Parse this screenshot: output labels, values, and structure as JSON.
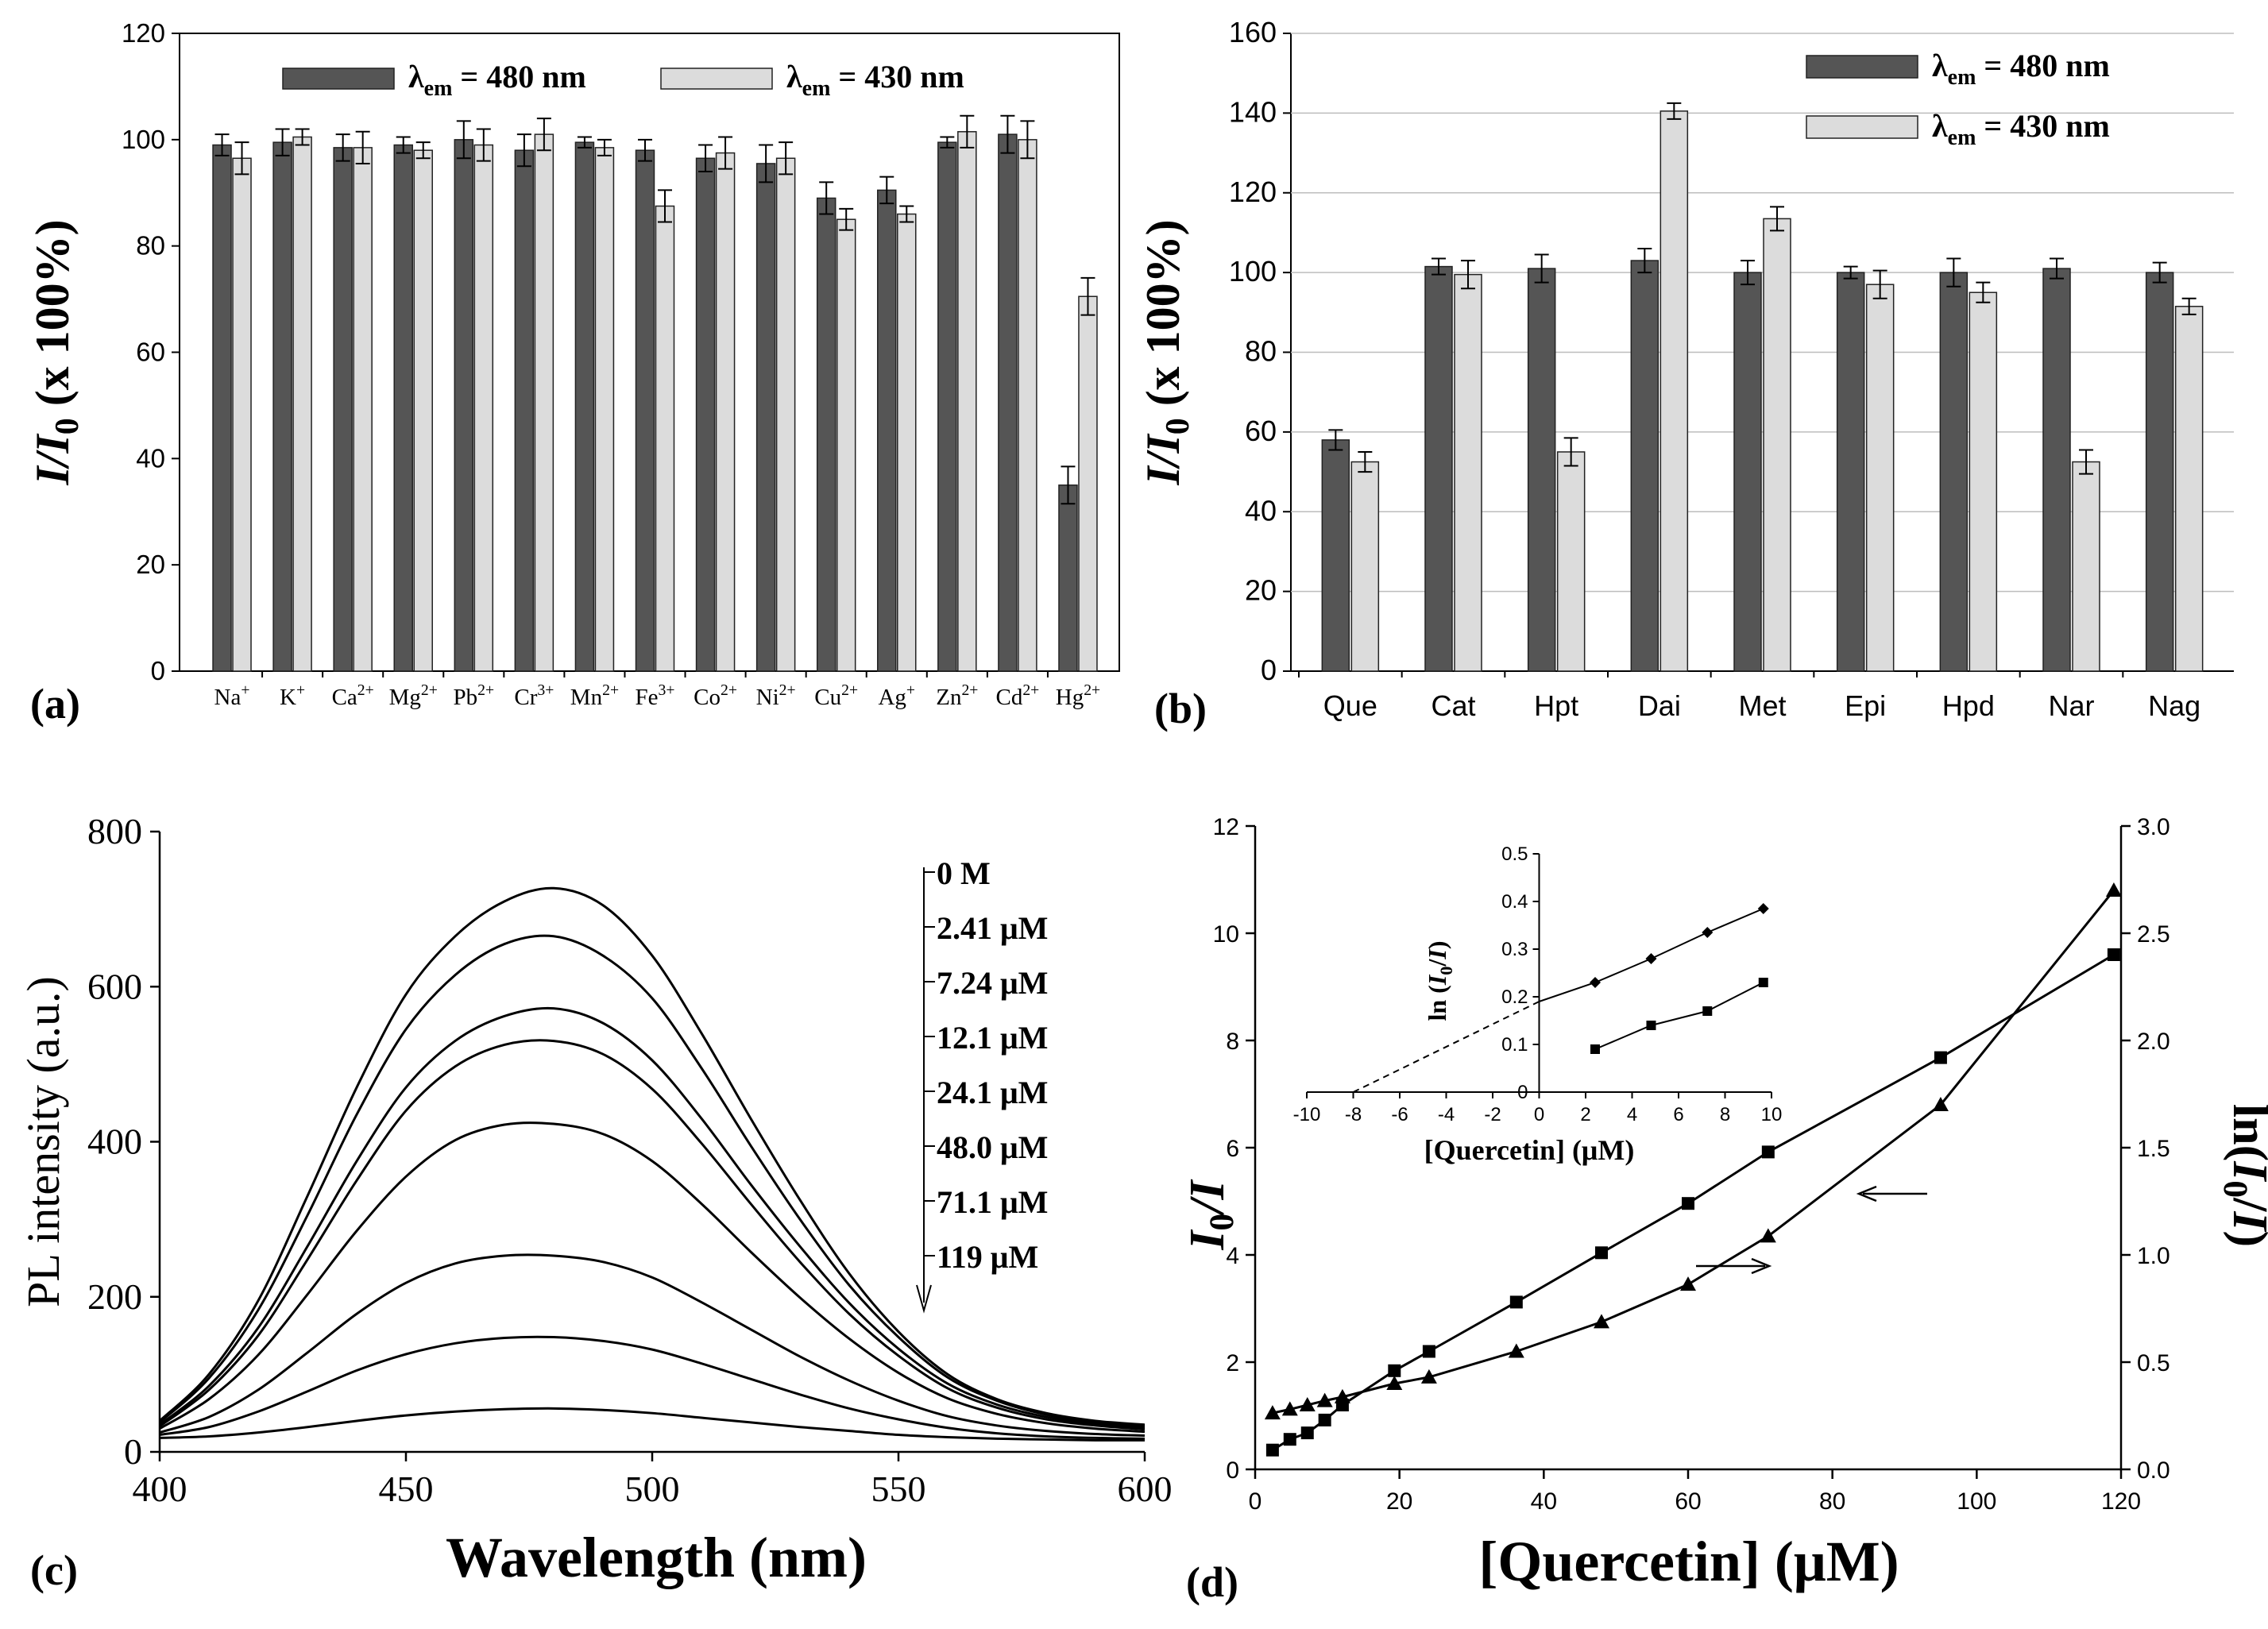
{
  "chart_data": [
    {
      "panel": "(a)",
      "type": "bar",
      "ylabel": "I/I0 (x 100%)",
      "ylim": [
        0,
        120
      ],
      "yticks": [
        "0",
        "20",
        "40",
        "60",
        "80",
        "100",
        "120"
      ],
      "categories": [
        "Na+",
        "K+",
        "Ca2+",
        "Mg2+",
        "Pb2+",
        "Cr3+",
        "Mn2+",
        "Fe3+",
        "Co2+",
        "Ni2+",
        "Cu2+",
        "Ag+",
        "Zn2+",
        "Cd2+",
        "Hg2+"
      ],
      "tick_labels": [
        {
          "base": "Na",
          "sup": "+"
        },
        {
          "base": "K",
          "sup": "+"
        },
        {
          "base": "Ca",
          "sup": "2+"
        },
        {
          "base": "Mg",
          "sup": "2+"
        },
        {
          "base": "Pb",
          "sup": "2+"
        },
        {
          "base": "Cr",
          "sup": "3+"
        },
        {
          "base": "Mn",
          "sup": "2+"
        },
        {
          "base": "Fe",
          "sup": "3+"
        },
        {
          "base": "Co",
          "sup": "2+"
        },
        {
          "base": "Ni",
          "sup": "2+"
        },
        {
          "base": "Cu",
          "sup": "2+"
        },
        {
          "base": "Ag",
          "sup": "+"
        },
        {
          "base": "Zn",
          "sup": "2+"
        },
        {
          "base": "Cd",
          "sup": "2+"
        },
        {
          "base": "Hg",
          "sup": "2+"
        }
      ],
      "series": [
        {
          "name": "λem = 480 nm",
          "legend": {
            "sym": "λ",
            "sub": "em",
            "rest": " = 480 nm"
          },
          "color": "#555555",
          "values": [
            99,
            99.5,
            98.5,
            99,
            100,
            98,
            99.5,
            98,
            96.5,
            95.5,
            89,
            90.5,
            99.5,
            101,
            35
          ],
          "errors": [
            2,
            2.5,
            2.5,
            1.5,
            3.5,
            3,
            1,
            2,
            2.5,
            3.5,
            3,
            2.5,
            1,
            3.5,
            3.5
          ]
        },
        {
          "name": "λem = 430 nm",
          "legend": {
            "sym": "λ",
            "sub": "em",
            "rest": " = 430 nm"
          },
          "color": "#dcdcdc",
          "values": [
            96.5,
            100.5,
            98.5,
            98,
            99,
            101,
            98.5,
            87.5,
            97.5,
            96.5,
            85,
            86,
            101.5,
            100,
            70.5
          ],
          "errors": [
            3,
            1.5,
            3,
            1.5,
            3,
            3,
            1.5,
            3,
            3,
            3,
            2,
            1.5,
            3,
            3.5,
            3.5
          ]
        }
      ]
    },
    {
      "panel": "(b)",
      "type": "bar",
      "ylabel": "I/I0 (x 100%)",
      "ylim": [
        0,
        160
      ],
      "yticks": [
        "0",
        "20",
        "40",
        "60",
        "80",
        "100",
        "120",
        "140",
        "160"
      ],
      "categories": [
        "Que",
        "Cat",
        "Hpt",
        "Dai",
        "Met",
        "Epi",
        "Hpd",
        "Nar",
        "Nag"
      ],
      "series": [
        {
          "name": "λem = 480 nm",
          "legend": {
            "sym": "λ",
            "sub": "em",
            "rest": " = 480 nm"
          },
          "color": "#555555",
          "values": [
            58,
            101.5,
            101,
            103,
            100,
            100,
            100,
            101,
            100
          ],
          "errors": [
            2.5,
            2,
            3.5,
            3,
            3,
            1.5,
            3.5,
            2.5,
            2.5
          ]
        },
        {
          "name": "λem = 430 nm",
          "legend": {
            "sym": "λ",
            "sub": "em",
            "rest": " = 430 nm"
          },
          "color": "#dcdcdc",
          "values": [
            52.5,
            99.5,
            55,
            140.5,
            113.5,
            97,
            95,
            52.5,
            91.5
          ],
          "errors": [
            2.5,
            3.5,
            3.5,
            2,
            3,
            3.5,
            2.5,
            3,
            2
          ]
        }
      ]
    },
    {
      "panel": "(c)",
      "type": "line",
      "xlabel": "Wavelength (nm)",
      "ylabel": "PL intensity (a.u.)",
      "xlim": [
        400,
        600
      ],
      "ylim": [
        0,
        800
      ],
      "xticks": [
        "400",
        "450",
        "500",
        "550",
        "600"
      ],
      "yticks": [
        "0",
        "200",
        "400",
        "600",
        "800"
      ],
      "x": [
        400,
        410,
        420,
        430,
        440,
        450,
        460,
        470,
        480,
        490,
        500,
        510,
        520,
        530,
        540,
        550,
        560,
        570,
        580,
        590,
        600
      ],
      "series": [
        {
          "name": "0 M",
          "values": [
            40,
            100,
            195,
            330,
            470,
            590,
            665,
            710,
            727,
            705,
            640,
            540,
            430,
            325,
            230,
            155,
            100,
            68,
            50,
            40,
            35
          ]
        },
        {
          "name": "2.41 μM",
          "values": [
            38,
            95,
            183,
            305,
            435,
            545,
            615,
            655,
            665,
            640,
            585,
            495,
            395,
            300,
            215,
            148,
            96,
            66,
            48,
            38,
            33
          ]
        },
        {
          "name": "7.24 μM",
          "values": [
            35,
            85,
            160,
            265,
            375,
            470,
            530,
            562,
            572,
            553,
            505,
            430,
            345,
            265,
            192,
            133,
            88,
            61,
            45,
            36,
            31
          ]
        },
        {
          "name": "12.1 μM",
          "values": [
            33,
            80,
            150,
            248,
            350,
            440,
            497,
            525,
            530,
            513,
            468,
            398,
            320,
            245,
            178,
            124,
            82,
            57,
            42,
            34,
            29
          ]
        },
        {
          "name": "24.1 μM",
          "values": [
            30,
            68,
            125,
            203,
            285,
            355,
            402,
            422,
            423,
            410,
            375,
            320,
            258,
            199,
            146,
            102,
            69,
            49,
            37,
            30,
            26
          ]
        },
        {
          "name": "48.0 μM",
          "values": [
            25,
            45,
            80,
            128,
            178,
            218,
            243,
            253,
            253,
            245,
            225,
            193,
            158,
            123,
            92,
            66,
            46,
            34,
            27,
            23,
            21
          ]
        },
        {
          "name": "71.1 μM",
          "values": [
            22,
            32,
            52,
            78,
            105,
            126,
            140,
            147,
            148,
            143,
            132,
            114,
            94,
            74,
            56,
            42,
            31,
            24,
            20,
            18,
            17
          ]
        },
        {
          "name": "119 μM",
          "values": [
            18,
            20,
            25,
            32,
            40,
            47,
            52,
            55,
            56,
            54,
            50,
            44,
            38,
            32,
            27,
            22,
            19,
            17,
            16,
            15,
            15
          ]
        }
      ],
      "arrow_label": "↓"
    },
    {
      "panel": "(d)",
      "type": "line",
      "xlabel": "[Quercetin] (μM)",
      "ylabel": "I0/I",
      "y2label": "ln(I0/I)",
      "xlim": [
        0,
        120
      ],
      "ylim": [
        0,
        12
      ],
      "y2lim": [
        0.0,
        3.0
      ],
      "xticks": [
        "0",
        "20",
        "40",
        "60",
        "80",
        "100",
        "120"
      ],
      "yticks": [
        "0",
        "2",
        "4",
        "6",
        "8",
        "10",
        "12"
      ],
      "y2ticks": [
        "0.0",
        "0.5",
        "1.0",
        "1.5",
        "2.0",
        "2.5",
        "3.0"
      ],
      "series": [
        {
          "name": "I0/I (triangles, left axis)",
          "marker": "triangle",
          "x": [
            2.41,
            4.82,
            7.24,
            9.65,
            12.1,
            19.3,
            24.1,
            36.2,
            48.0,
            60.0,
            71.1,
            95.0,
            119
          ],
          "y": [
            1.05,
            1.12,
            1.2,
            1.28,
            1.35,
            1.6,
            1.72,
            2.2,
            2.75,
            3.45,
            4.35,
            6.8,
            10.8
          ]
        },
        {
          "name": "ln(I0/I) (squares, right axis)",
          "marker": "square",
          "axis": "right",
          "x": [
            2.41,
            4.82,
            7.24,
            9.65,
            12.1,
            19.3,
            24.1,
            36.2,
            48.0,
            60.0,
            71.1,
            95.0,
            119
          ],
          "y": [
            0.09,
            0.14,
            0.17,
            0.23,
            0.3,
            0.46,
            0.55,
            0.78,
            1.01,
            1.24,
            1.48,
            1.92,
            2.4
          ]
        }
      ],
      "inset": {
        "xlabel": "[Quercetin] (μM)",
        "ylabel": "ln (I0/I)",
        "xlim": [
          -10,
          10
        ],
        "ylim": [
          0,
          0.5
        ],
        "xticks": [
          "-10",
          "-8",
          "-6",
          "-4",
          "-2",
          "0",
          "2",
          "4",
          "6",
          "8",
          "10"
        ],
        "yticks": [
          "0",
          "0.1",
          "0.2",
          "0.3",
          "0.4",
          "0.5"
        ],
        "series": [
          {
            "name": "diamonds",
            "marker": "diamond",
            "x": [
              2.41,
              4.82,
              7.24,
              9.65
            ],
            "y": [
              0.23,
              0.28,
              0.335,
              0.385
            ]
          },
          {
            "name": "squares",
            "marker": "square",
            "x": [
              2.41,
              4.82,
              7.24,
              9.65
            ],
            "y": [
              0.09,
              0.14,
              0.17,
              0.23
            ]
          }
        ],
        "extrapolation": {
          "x0": -8.0,
          "y0": 0.0,
          "x1": 0.0,
          "y1": 0.19
        }
      }
    }
  ]
}
